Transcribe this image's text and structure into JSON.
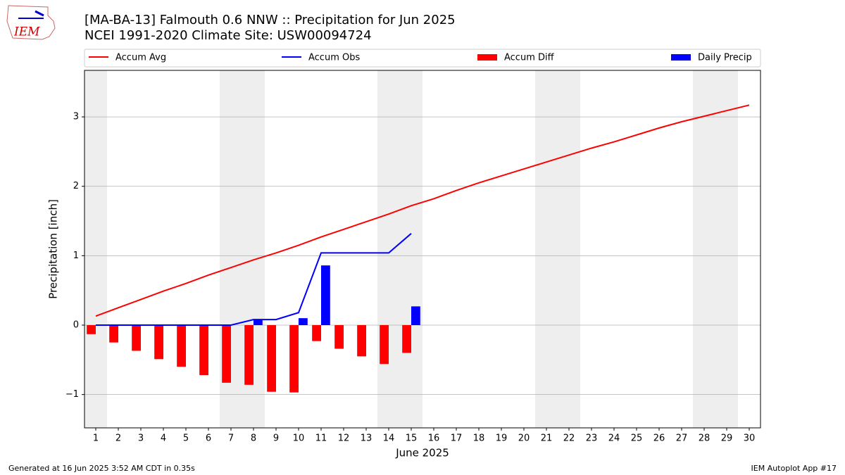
{
  "chart_data": {
    "type": "combo",
    "title": "[MA-BA-13] Falmouth 0.6 NNW :: Precipitation for Jun 2025",
    "subtitle": "NCEI 1991-2020 Climate Site: USW00094724",
    "xlabel": "June 2025",
    "ylabel": "Precipitation [inch]",
    "logo_text": "IEM",
    "footer_left": "Generated at 16 Jun 2025 3:52 AM CDT in 0.35s",
    "footer_right": "IEM Autoplot App #17",
    "x": [
      1,
      2,
      3,
      4,
      5,
      6,
      7,
      8,
      9,
      10,
      11,
      12,
      13,
      14,
      15,
      16,
      17,
      18,
      19,
      20,
      21,
      22,
      23,
      24,
      25,
      26,
      27,
      28,
      29,
      30
    ],
    "xlim": [
      0.5,
      30.5
    ],
    "xticks": [
      1,
      2,
      3,
      4,
      5,
      6,
      7,
      8,
      9,
      10,
      11,
      12,
      13,
      14,
      15,
      16,
      17,
      18,
      19,
      20,
      21,
      22,
      23,
      24,
      25,
      26,
      27,
      28,
      29,
      30
    ],
    "ylim": [
      -1.48,
      3.67
    ],
    "yticks": [
      {
        "value": -1,
        "label": "−1"
      },
      0,
      1,
      2,
      3
    ],
    "grid": true,
    "shaded_spans": [
      [
        0.5,
        1.5
      ],
      [
        6.5,
        8.5
      ],
      [
        13.5,
        15.5
      ],
      [
        20.5,
        22.5
      ],
      [
        27.5,
        29.5
      ]
    ],
    "shade_color": "#eeeeee",
    "series": [
      {
        "name": "Accum Avg",
        "type": "line",
        "color": "#ff0000",
        "values": [
          0.13,
          0.25,
          0.37,
          0.49,
          0.6,
          0.72,
          0.83,
          0.94,
          1.04,
          1.15,
          1.27,
          1.38,
          1.49,
          1.6,
          1.72,
          1.82,
          1.94,
          2.05,
          2.15,
          2.25,
          2.35,
          2.45,
          2.55,
          2.64,
          2.74,
          2.84,
          2.93,
          3.01,
          3.09,
          3.17
        ]
      },
      {
        "name": "Accum Obs",
        "type": "line",
        "color": "#0000ff",
        "values": [
          0,
          0,
          0,
          0,
          0,
          0,
          0,
          0.08,
          0.08,
          0.18,
          1.04,
          1.04,
          1.04,
          1.04,
          1.32,
          null,
          null,
          null,
          null,
          null,
          null,
          null,
          null,
          null,
          null,
          null,
          null,
          null,
          null,
          null
        ]
      },
      {
        "name": "Accum Diff",
        "type": "bar",
        "color": "#ff0000",
        "offset": -0.4,
        "values": [
          -0.13,
          -0.25,
          -0.37,
          -0.49,
          -0.6,
          -0.72,
          -0.83,
          -0.86,
          -0.96,
          -0.97,
          -0.23,
          -0.34,
          -0.45,
          -0.56,
          -0.4,
          null,
          null,
          null,
          null,
          null,
          null,
          null,
          null,
          null,
          null,
          null,
          null,
          null,
          null,
          null
        ]
      },
      {
        "name": "Daily Precip",
        "type": "bar",
        "color": "#0000ff",
        "offset": 0,
        "values": [
          0,
          0,
          0,
          0,
          0,
          0,
          0,
          0.08,
          0,
          0.1,
          0.86,
          0,
          0,
          0,
          0.27,
          null,
          null,
          null,
          null,
          null,
          null,
          null,
          null,
          null,
          null,
          null,
          null,
          null,
          null,
          null
        ]
      }
    ]
  }
}
